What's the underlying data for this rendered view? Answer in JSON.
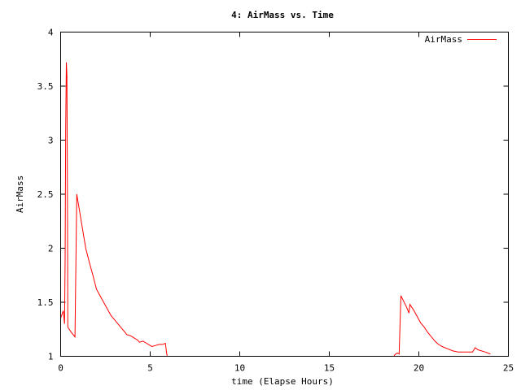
{
  "chart_data": {
    "type": "line",
    "title": "4: AirMass vs. Time",
    "xlabel": "time (Elapse Hours)",
    "ylabel": "AirMass",
    "xlim": [
      0,
      25
    ],
    "ylim": [
      1,
      4
    ],
    "xticks": [
      0,
      5,
      10,
      15,
      20,
      25
    ],
    "xtick_labels": [
      "0",
      "5",
      "10",
      "15",
      "20",
      "25"
    ],
    "yticks": [
      1,
      1.5,
      2,
      2.5,
      3,
      3.5,
      4
    ],
    "ytick_labels": [
      "1",
      "1.5",
      "2",
      "2.5",
      "3",
      "3.5",
      "4"
    ],
    "grid": false,
    "legend": "top-right",
    "series": [
      {
        "name": "AirMass",
        "color": "#ff0000",
        "segments": [
          [
            [
              0.0,
              1.35
            ],
            [
              0.1,
              1.4
            ],
            [
              0.15,
              1.42
            ],
            [
              0.2,
              1.33
            ],
            [
              0.22,
              1.3
            ],
            [
              0.25,
              1.9
            ],
            [
              0.28,
              3.1
            ],
            [
              0.32,
              3.72
            ],
            [
              0.35,
              3.6
            ],
            [
              0.38,
              2.38
            ],
            [
              0.4,
              1.27
            ],
            [
              0.6,
              1.22
            ],
            [
              0.8,
              1.18
            ],
            [
              0.9,
              2.5
            ],
            [
              1.0,
              2.4
            ],
            [
              1.2,
              2.2
            ],
            [
              1.4,
              2.0
            ],
            [
              1.6,
              1.87
            ],
            [
              1.8,
              1.75
            ],
            [
              2.0,
              1.62
            ],
            [
              2.2,
              1.56
            ],
            [
              2.4,
              1.5
            ],
            [
              2.6,
              1.44
            ],
            [
              2.8,
              1.38
            ],
            [
              3.0,
              1.34
            ],
            [
              3.2,
              1.3
            ],
            [
              3.4,
              1.26
            ],
            [
              3.6,
              1.22
            ],
            [
              3.7,
              1.2
            ],
            [
              3.9,
              1.19
            ],
            [
              4.1,
              1.17
            ],
            [
              4.3,
              1.15
            ],
            [
              4.4,
              1.13
            ],
            [
              4.6,
              1.14
            ],
            [
              4.8,
              1.12
            ],
            [
              4.9,
              1.11
            ],
            [
              5.0,
              1.1
            ],
            [
              5.1,
              1.09
            ],
            [
              5.3,
              1.1
            ],
            [
              5.5,
              1.11
            ],
            [
              5.7,
              1.11
            ],
            [
              5.85,
              1.12
            ],
            [
              5.9,
              1.05
            ],
            [
              5.95,
              1.0
            ]
          ],
          [
            [
              18.6,
              1.0
            ],
            [
              18.7,
              1.02
            ],
            [
              18.8,
              1.03
            ],
            [
              18.9,
              1.02
            ],
            [
              19.0,
              1.56
            ],
            [
              19.15,
              1.51
            ],
            [
              19.3,
              1.46
            ],
            [
              19.45,
              1.4
            ],
            [
              19.5,
              1.48
            ],
            [
              19.7,
              1.43
            ],
            [
              19.9,
              1.37
            ],
            [
              20.1,
              1.31
            ],
            [
              20.3,
              1.27
            ],
            [
              20.5,
              1.22
            ],
            [
              20.7,
              1.18
            ],
            [
              20.9,
              1.14
            ],
            [
              21.1,
              1.11
            ],
            [
              21.3,
              1.09
            ],
            [
              21.6,
              1.07
            ],
            [
              21.9,
              1.05
            ],
            [
              22.2,
              1.04
            ],
            [
              22.5,
              1.04
            ],
            [
              22.8,
              1.04
            ],
            [
              23.0,
              1.04
            ],
            [
              23.15,
              1.08
            ],
            [
              23.3,
              1.06
            ],
            [
              23.5,
              1.05
            ],
            [
              23.7,
              1.04
            ],
            [
              23.85,
              1.03
            ],
            [
              24.0,
              1.02
            ]
          ]
        ]
      }
    ]
  }
}
